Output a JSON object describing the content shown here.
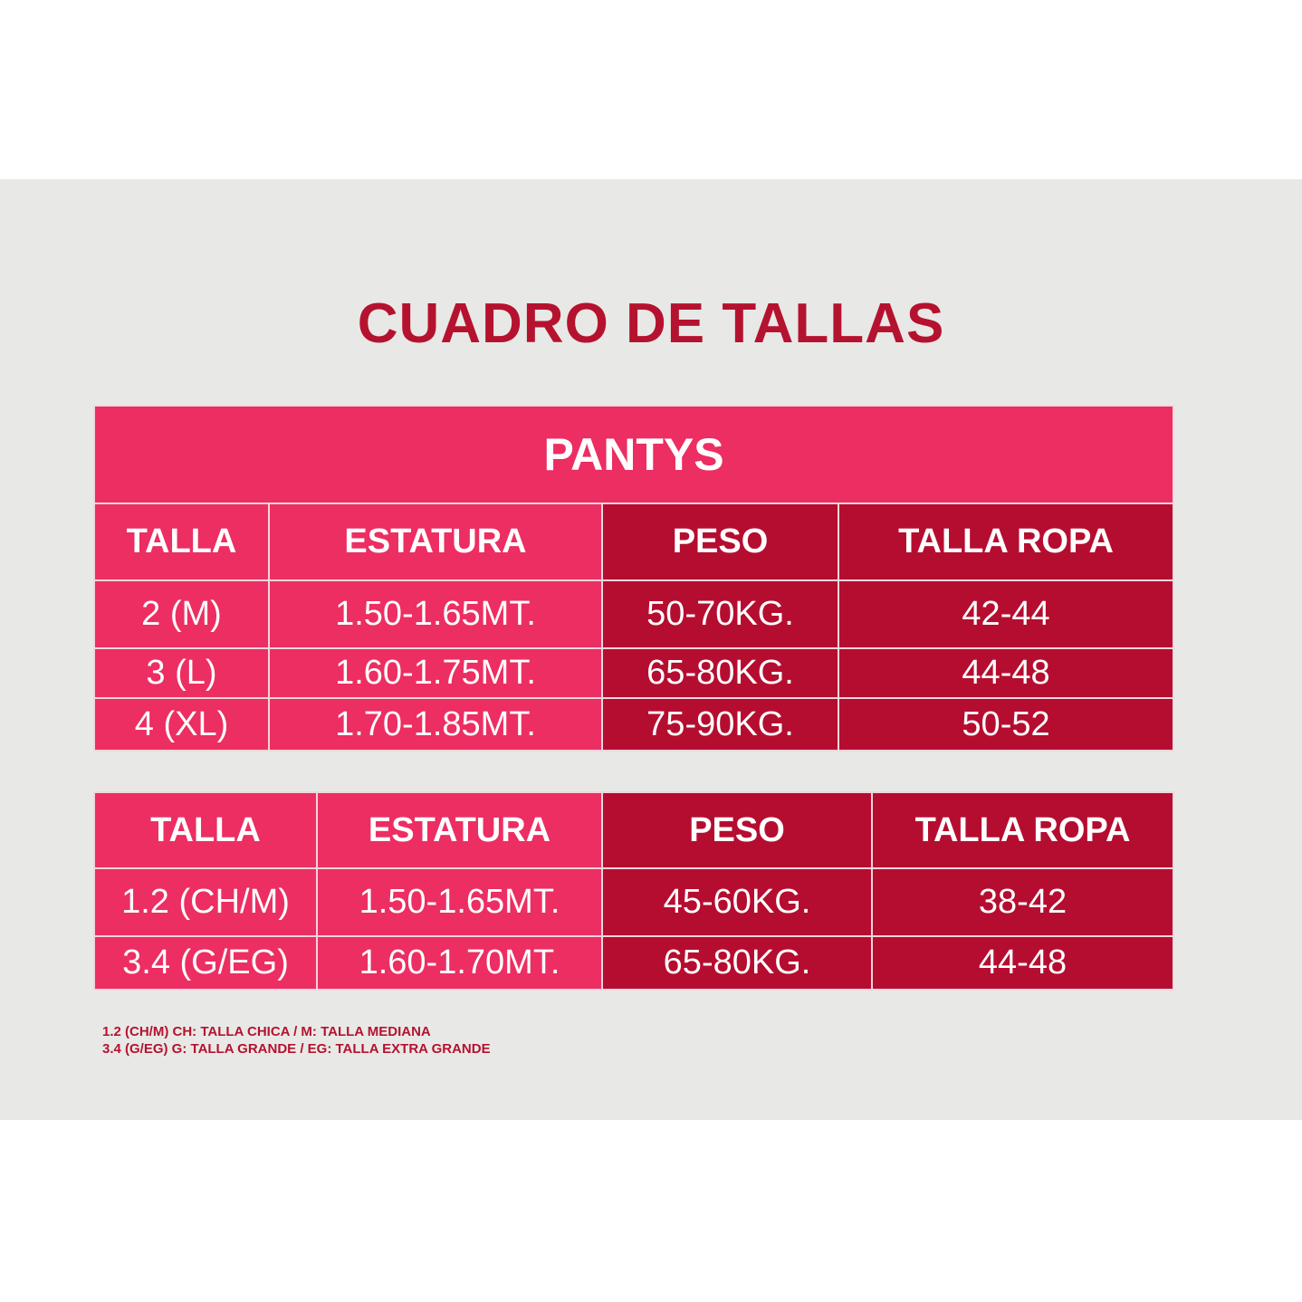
{
  "title": "CUADRO DE TALLAS",
  "colors": {
    "pink": "#EC2E62",
    "dark_red": "#B50D30",
    "background": "#E8E9E6",
    "title": "#B5122F"
  },
  "table1": {
    "caption": "PANTYS",
    "headers": [
      "TALLA",
      "ESTATURA",
      "PESO",
      "TALLA ROPA"
    ],
    "rows": [
      [
        "2 (M)",
        "1.50-1.65MT.",
        "50-70KG.",
        "42-44"
      ],
      [
        "3 (L)",
        "1.60-1.75MT.",
        "65-80KG.",
        "44-48"
      ],
      [
        "4 (XL)",
        "1.70-1.85MT.",
        "75-90KG.",
        "50-52"
      ]
    ]
  },
  "table2": {
    "headers": [
      "TALLA",
      "ESTATURA",
      "PESO",
      "TALLA ROPA"
    ],
    "rows": [
      [
        "1.2 (CH/M)",
        "1.50-1.65MT.",
        "45-60KG.",
        "38-42"
      ],
      [
        "3.4 (G/EG)",
        "1.60-1.70MT.",
        "65-80KG.",
        "44-48"
      ]
    ]
  },
  "notes": [
    "1.2 (CH/M) CH: TALLA CHICA / M: TALLA MEDIANA",
    "3.4 (G/EG) G: TALLA GRANDE / EG: TALLA EXTRA GRANDE"
  ]
}
